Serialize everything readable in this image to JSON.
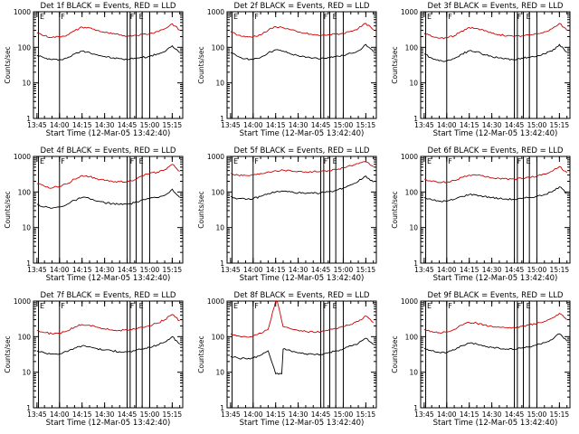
{
  "figure": {
    "panel_title_template": "Det {det}f BLACK = Events, RED = LLD",
    "xlabel": "Start Time (12-Mar-05 13:42:40)",
    "ylabel": "Counts/sec",
    "xtick_labels": [
      "13:45",
      "14:00",
      "14:15",
      "14:30",
      "14:45",
      "15:00",
      "15:15"
    ],
    "ytick_labels": [
      "1",
      "10",
      "100",
      "1000"
    ],
    "marker_labels": [
      "E",
      "F",
      "F",
      "E"
    ],
    "colors": {
      "events": "#000000",
      "lld": "#cc0000",
      "axes": "#000000"
    }
  },
  "chart_data": [
    {
      "type": "line",
      "detector": "1",
      "title": "Det 1f BLACK = Events, RED = LLD",
      "x_range": [
        "13:42:40",
        "15:22:00"
      ],
      "ylim": [
        1,
        1000
      ],
      "yscale": "log",
      "series": [
        {
          "name": "BLACK = Events",
          "color": "#000000",
          "x": [
            "13:45",
            "13:50",
            "13:55",
            "14:00",
            "14:05",
            "14:10",
            "14:15",
            "14:20",
            "14:25",
            "14:30",
            "14:35",
            "14:40",
            "14:45",
            "14:50",
            "14:55",
            "15:00",
            "15:05",
            "15:10",
            "15:15",
            "15:20"
          ],
          "values": [
            60,
            50,
            45,
            45,
            50,
            65,
            78,
            72,
            62,
            55,
            50,
            48,
            45,
            50,
            52,
            55,
            65,
            75,
            110,
            70
          ]
        },
        {
          "name": "RED = LLD",
          "color": "#cc0000",
          "x": [
            "13:45",
            "13:50",
            "13:55",
            "14:00",
            "14:05",
            "14:10",
            "14:15",
            "14:20",
            "14:25",
            "14:30",
            "14:35",
            "14:40",
            "14:45",
            "14:50",
            "14:55",
            "15:00",
            "15:05",
            "15:10",
            "15:15",
            "15:20"
          ],
          "values": [
            260,
            210,
            190,
            200,
            220,
            290,
            370,
            350,
            300,
            260,
            240,
            220,
            210,
            220,
            230,
            240,
            280,
            330,
            460,
            300
          ]
        }
      ]
    },
    {
      "type": "line",
      "detector": "2",
      "title": "Det 2f BLACK = Events, RED = LLD",
      "x_range": [
        "13:42:40",
        "15:22:00"
      ],
      "ylim": [
        1,
        1000
      ],
      "yscale": "log",
      "series": [
        {
          "name": "BLACK = Events",
          "color": "#000000",
          "x": [
            "13:45",
            "13:50",
            "13:55",
            "14:00",
            "14:05",
            "14:10",
            "14:15",
            "14:20",
            "14:25",
            "14:30",
            "14:35",
            "14:40",
            "14:45",
            "14:50",
            "14:55",
            "15:00",
            "15:05",
            "15:10",
            "15:15",
            "15:20"
          ],
          "values": [
            70,
            55,
            48,
            45,
            52,
            70,
            85,
            78,
            65,
            58,
            52,
            50,
            48,
            52,
            55,
            58,
            68,
            80,
            120,
            75
          ]
        },
        {
          "name": "RED = LLD",
          "color": "#cc0000",
          "x": [
            "13:45",
            "13:50",
            "13:55",
            "14:00",
            "14:05",
            "14:10",
            "14:15",
            "14:20",
            "14:25",
            "14:30",
            "14:35",
            "14:40",
            "14:45",
            "14:50",
            "14:55",
            "15:00",
            "15:05",
            "15:10",
            "15:15",
            "15:20"
          ],
          "values": [
            280,
            220,
            195,
            200,
            225,
            300,
            380,
            360,
            310,
            265,
            245,
            225,
            215,
            225,
            235,
            245,
            285,
            340,
            470,
            310
          ]
        }
      ]
    },
    {
      "type": "line",
      "detector": "3",
      "title": "Det 3f BLACK = Events, RED = LLD",
      "x_range": [
        "13:42:40",
        "15:22:00"
      ],
      "ylim": [
        1,
        1000
      ],
      "yscale": "log",
      "series": [
        {
          "name": "BLACK = Events",
          "color": "#000000",
          "x": [
            "13:45",
            "13:50",
            "13:55",
            "14:00",
            "14:05",
            "14:10",
            "14:15",
            "14:20",
            "14:25",
            "14:30",
            "14:35",
            "14:40",
            "14:45",
            "14:50",
            "14:55",
            "15:00",
            "15:05",
            "15:10",
            "15:15",
            "15:20"
          ],
          "values": [
            65,
            50,
            42,
            42,
            48,
            65,
            80,
            75,
            62,
            55,
            50,
            47,
            45,
            50,
            52,
            56,
            66,
            78,
            120,
            72
          ]
        },
        {
          "name": "RED = LLD",
          "color": "#cc0000",
          "x": [
            "13:45",
            "13:50",
            "13:55",
            "14:00",
            "14:05",
            "14:10",
            "14:15",
            "14:20",
            "14:25",
            "14:30",
            "14:35",
            "14:40",
            "14:45",
            "14:50",
            "14:55",
            "15:00",
            "15:05",
            "15:10",
            "15:15",
            "15:20"
          ],
          "values": [
            250,
            200,
            180,
            185,
            210,
            285,
            360,
            340,
            290,
            250,
            230,
            210,
            200,
            210,
            220,
            235,
            275,
            330,
            470,
            300
          ]
        }
      ]
    },
    {
      "type": "line",
      "detector": "4",
      "title": "Det 4f BLACK = Events, RED = LLD",
      "x_range": [
        "13:42:40",
        "15:22:00"
      ],
      "ylim": [
        1,
        1000
      ],
      "yscale": "log",
      "series": [
        {
          "name": "BLACK = Events",
          "color": "#000000",
          "x": [
            "13:45",
            "13:50",
            "13:55",
            "14:00",
            "14:05",
            "14:10",
            "14:15",
            "14:20",
            "14:25",
            "14:30",
            "14:35",
            "14:40",
            "14:45",
            "14:50",
            "14:55",
            "15:00",
            "15:05",
            "15:10",
            "15:15",
            "15:20"
          ],
          "values": [
            45,
            38,
            35,
            38,
            45,
            58,
            70,
            65,
            55,
            50,
            47,
            45,
            45,
            50,
            60,
            65,
            70,
            80,
            120,
            70
          ]
        },
        {
          "name": "RED = LLD",
          "color": "#cc0000",
          "x": [
            "13:45",
            "13:50",
            "13:55",
            "14:00",
            "14:05",
            "14:10",
            "14:15",
            "14:20",
            "14:25",
            "14:30",
            "14:35",
            "14:40",
            "14:45",
            "14:50",
            "14:55",
            "15:00",
            "15:05",
            "15:10",
            "15:15",
            "15:20"
          ],
          "values": [
            170,
            145,
            130,
            145,
            170,
            230,
            290,
            270,
            235,
            210,
            200,
            195,
            200,
            220,
            280,
            330,
            360,
            420,
            600,
            380
          ]
        }
      ]
    },
    {
      "type": "line",
      "detector": "5",
      "title": "Det 5f BLACK = Events, RED = LLD",
      "x_range": [
        "13:42:40",
        "15:22:00"
      ],
      "ylim": [
        1,
        1000
      ],
      "yscale": "log",
      "series": [
        {
          "name": "BLACK = Events",
          "color": "#000000",
          "x": [
            "13:45",
            "13:50",
            "13:55",
            "14:00",
            "14:05",
            "14:10",
            "14:15",
            "14:20",
            "14:25",
            "14:30",
            "14:35",
            "14:40",
            "14:45",
            "14:50",
            "14:55",
            "15:00",
            "15:05",
            "15:10",
            "15:15",
            "15:20"
          ],
          "values": [
            75,
            65,
            62,
            65,
            75,
            90,
            100,
            105,
            100,
            95,
            90,
            92,
            95,
            100,
            110,
            130,
            160,
            200,
            280,
            190
          ]
        },
        {
          "name": "RED = LLD",
          "color": "#cc0000",
          "x": [
            "13:45",
            "13:50",
            "13:55",
            "14:00",
            "14:05",
            "14:10",
            "14:15",
            "14:20",
            "14:25",
            "14:30",
            "14:35",
            "14:40",
            "14:45",
            "14:50",
            "14:55",
            "15:00",
            "15:05",
            "15:10",
            "15:15",
            "15:20"
          ],
          "values": [
            330,
            300,
            290,
            300,
            330,
            370,
            400,
            410,
            400,
            380,
            370,
            370,
            380,
            400,
            430,
            480,
            550,
            620,
            700,
            520
          ]
        }
      ]
    },
    {
      "type": "line",
      "detector": "6",
      "title": "Det 6f BLACK = Events, RED = LLD",
      "x_range": [
        "13:42:40",
        "15:22:00"
      ],
      "ylim": [
        1,
        1000
      ],
      "yscale": "log",
      "series": [
        {
          "name": "BLACK = Events",
          "color": "#000000",
          "x": [
            "13:45",
            "13:50",
            "13:55",
            "14:00",
            "14:05",
            "14:10",
            "14:15",
            "14:20",
            "14:25",
            "14:30",
            "14:35",
            "14:40",
            "14:45",
            "14:50",
            "14:55",
            "15:00",
            "15:05",
            "15:10",
            "15:15",
            "15:20"
          ],
          "values": [
            70,
            60,
            55,
            55,
            62,
            75,
            85,
            82,
            75,
            70,
            65,
            63,
            62,
            65,
            70,
            75,
            85,
            100,
            140,
            90
          ]
        },
        {
          "name": "RED = LLD",
          "color": "#cc0000",
          "x": [
            "13:45",
            "13:50",
            "13:55",
            "14:00",
            "14:05",
            "14:10",
            "14:15",
            "14:20",
            "14:25",
            "14:30",
            "14:35",
            "14:40",
            "14:45",
            "14:50",
            "14:55",
            "15:00",
            "15:05",
            "15:10",
            "15:15",
            "15:20"
          ],
          "values": [
            230,
            200,
            185,
            190,
            210,
            260,
            300,
            295,
            270,
            250,
            240,
            235,
            230,
            240,
            260,
            280,
            320,
            380,
            520,
            350
          ]
        }
      ]
    },
    {
      "type": "line",
      "detector": "7",
      "title": "Det 7f BLACK = Events, RED = LLD",
      "x_range": [
        "13:42:40",
        "15:22:00"
      ],
      "ylim": [
        1,
        1000
      ],
      "yscale": "log",
      "series": [
        {
          "name": "BLACK = Events",
          "color": "#000000",
          "x": [
            "13:45",
            "13:50",
            "13:55",
            "14:00",
            "14:05",
            "14:10",
            "14:15",
            "14:20",
            "14:25",
            "14:30",
            "14:35",
            "14:40",
            "14:45",
            "14:50",
            "14:55",
            "15:00",
            "15:05",
            "15:10",
            "15:15",
            "15:20"
          ],
          "values": [
            40,
            35,
            33,
            33,
            38,
            48,
            55,
            52,
            46,
            42,
            40,
            38,
            37,
            40,
            45,
            50,
            58,
            70,
            100,
            62
          ]
        },
        {
          "name": "RED = LLD",
          "color": "#cc0000",
          "x": [
            "13:45",
            "13:50",
            "13:55",
            "14:00",
            "14:05",
            "14:10",
            "14:15",
            "14:20",
            "14:25",
            "14:30",
            "14:35",
            "14:40",
            "14:45",
            "14:50",
            "14:55",
            "15:00",
            "15:05",
            "15:10",
            "15:15",
            "15:20"
          ],
          "values": [
            150,
            130,
            120,
            125,
            145,
            185,
            220,
            210,
            185,
            165,
            155,
            150,
            150,
            165,
            185,
            205,
            240,
            300,
            420,
            280
          ]
        }
      ]
    },
    {
      "type": "line",
      "detector": "8",
      "title": "Det 8f BLACK = Events, RED = LLD",
      "x_range": [
        "13:42:40",
        "15:22:00"
      ],
      "ylim": [
        1,
        1000
      ],
      "yscale": "log",
      "series": [
        {
          "name": "BLACK = Events",
          "color": "#000000",
          "x": [
            "13:45",
            "13:50",
            "13:55",
            "14:00",
            "14:05",
            "14:10",
            "14:15",
            "14:19",
            "14:20",
            "14:25",
            "14:30",
            "14:35",
            "14:40",
            "14:45",
            "14:50",
            "14:55",
            "15:00",
            "15:05",
            "15:10",
            "15:15",
            "15:20"
          ],
          "values": [
            28,
            25,
            24,
            25,
            30,
            40,
            9,
            9,
            45,
            40,
            35,
            33,
            32,
            32,
            35,
            40,
            45,
            55,
            65,
            90,
            60
          ]
        },
        {
          "name": "RED = LLD",
          "color": "#cc0000",
          "x": [
            "13:45",
            "13:50",
            "13:55",
            "14:00",
            "14:05",
            "14:10",
            "14:15",
            "14:16",
            "14:20",
            "14:25",
            "14:30",
            "14:35",
            "14:40",
            "14:45",
            "14:50",
            "14:55",
            "15:00",
            "15:05",
            "15:10",
            "15:15",
            "15:20"
          ],
          "values": [
            120,
            105,
            100,
            105,
            125,
            160,
            1000,
            1000,
            190,
            165,
            150,
            140,
            135,
            135,
            150,
            170,
            190,
            220,
            270,
            380,
            250
          ]
        }
      ]
    },
    {
      "type": "line",
      "detector": "9",
      "title": "Det 9f BLACK = Events, RED = LLD",
      "x_range": [
        "13:42:40",
        "15:22:00"
      ],
      "ylim": [
        1,
        1000
      ],
      "yscale": "log",
      "series": [
        {
          "name": "BLACK = Events",
          "color": "#000000",
          "x": [
            "13:45",
            "13:50",
            "13:55",
            "14:00",
            "14:05",
            "14:10",
            "14:15",
            "14:20",
            "14:25",
            "14:30",
            "14:35",
            "14:40",
            "14:45",
            "14:50",
            "14:55",
            "15:00",
            "15:05",
            "15:10",
            "15:15",
            "15:20"
          ],
          "values": [
            48,
            40,
            36,
            36,
            42,
            55,
            65,
            62,
            55,
            50,
            47,
            45,
            44,
            48,
            52,
            58,
            68,
            82,
            120,
            75
          ]
        },
        {
          "name": "RED = LLD",
          "color": "#cc0000",
          "x": [
            "13:45",
            "13:50",
            "13:55",
            "14:00",
            "14:05",
            "14:10",
            "14:15",
            "14:20",
            "14:25",
            "14:30",
            "14:35",
            "14:40",
            "14:45",
            "14:50",
            "14:55",
            "15:00",
            "15:05",
            "15:10",
            "15:15",
            "15:20"
          ],
          "values": [
            160,
            140,
            130,
            135,
            160,
            210,
            250,
            240,
            215,
            195,
            185,
            180,
            180,
            195,
            215,
            235,
            270,
            330,
            450,
            300
          ]
        }
      ]
    }
  ]
}
